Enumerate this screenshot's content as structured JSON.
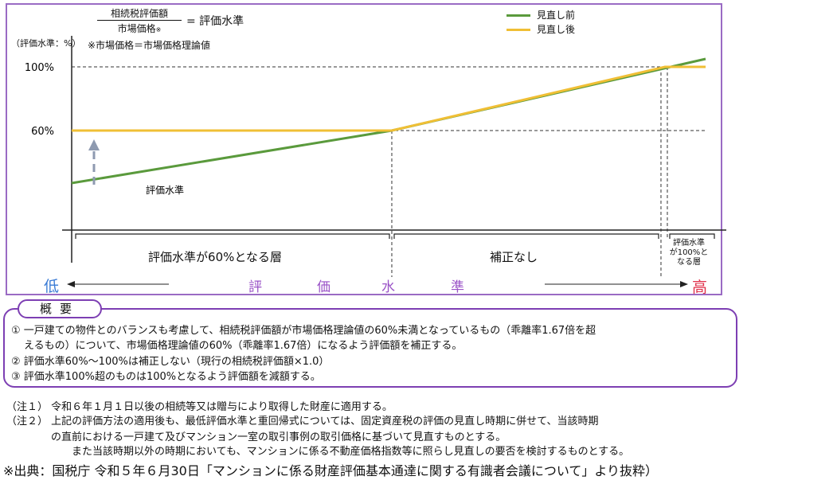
{
  "formula": {
    "numerator": "相続税評価額",
    "denominator": "市場価格",
    "denominator_mark": "※",
    "equals_text": "= 評価水準",
    "note": "※市場価格＝市場価格理論値"
  },
  "chart_data": {
    "type": "line",
    "ylabel": "（評価水準：%）",
    "x_label_low": "低",
    "x_label_high": "高",
    "x_axis_words": [
      "評",
      "価",
      "水",
      "準"
    ],
    "yticks": [
      "100%",
      "60%"
    ],
    "x": [
      0,
      0.505,
      1
    ],
    "series": [
      {
        "name": "見直し前",
        "color": "#5a9a3c",
        "values": [
          27,
          60,
          105
        ]
      },
      {
        "name": "見直し後",
        "color": "#f0bf35",
        "values": [
          60,
          60,
          100
        ]
      }
    ],
    "curve_label": "評価水準",
    "segments": [
      {
        "label": "評価水準が60%となる層"
      },
      {
        "label": "補正なし"
      },
      {
        "label": [
          "評価水準",
          "が100%と",
          "なる層"
        ]
      }
    ],
    "grid": false
  },
  "summary": {
    "title": "概要",
    "items": [
      "① 一戸建ての物件とのバランスも考慮して、相続税評価額が市場価格理論値の60%未満となっているもの（乖離率1.67倍を超",
      "えるもの）について、市場価格理論値の60%（乖離率1.67倍）になるよう評価額を補正する。",
      "② 評価水準60%～100%は補正しない（現行の相続税評価額×1.0）",
      "③ 評価水準100%超のものは100%となるよう評価額を減額する。"
    ]
  },
  "notes": [
    "（注１） 令和６年１月１日以後の相続等又は贈与により取得した財産に適用する。",
    "（注２） 上記の評価方法の適用後も、最低評価水準と重回帰式については、固定資産税の評価の見直し時期に併せて、当該時期",
    "の直前における一戸建て及びマンション一室の取引事例の取引価格に基づいて見直すものとする。",
    "また当該時期以外の時期においても、マンションに係る不動産価格指数等に照らし見直しの要否を検討するものとする。"
  ],
  "source": "※出典：国税庁 令和５年６月30日「マンションに係る財産評価基本通達に関する有識者会議について」より抜粋）"
}
